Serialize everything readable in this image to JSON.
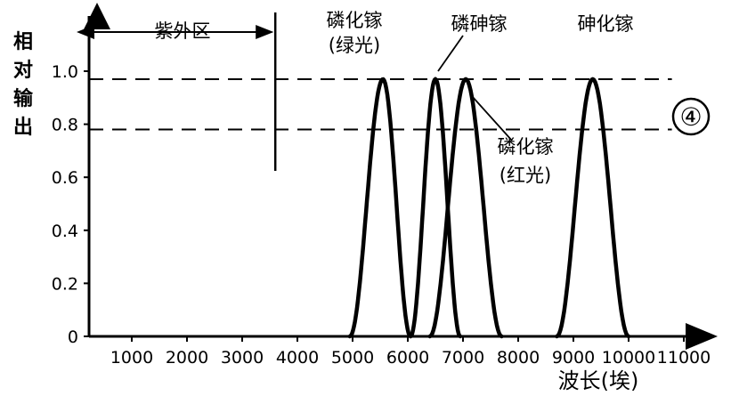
{
  "chart_data": {
    "type": "line",
    "title": "",
    "xlabel": "波长(埃)",
    "ylabel": "相对输出",
    "xlim": [
      0,
      11000
    ],
    "ylim": [
      0,
      1.0
    ],
    "x_ticks": [
      1000,
      2000,
      3000,
      4000,
      5000,
      6000,
      7000,
      8000,
      9000,
      10000,
      11000
    ],
    "y_ticks": [
      0,
      0.2,
      0.4,
      0.6,
      0.8,
      1.0
    ],
    "y_tick_labels": [
      "0",
      "0.2",
      "0.4",
      "0.6",
      "0.8",
      "1.0"
    ],
    "grid": false,
    "reference_lines": [
      {
        "y": 0.97,
        "style": "dashed",
        "from_x": 0,
        "to_x": 10300
      },
      {
        "y": 0.78,
        "style": "dashed",
        "from_x": 0,
        "to_x": 10300
      }
    ],
    "boundary": {
      "x": 3600,
      "label": "紫外区",
      "span": [
        0,
        3600
      ]
    },
    "series": [
      {
        "name": "磷化镓(绿光)",
        "peak_x": 5550,
        "peak_y": 0.97,
        "half_width": 500,
        "x": [
          4950,
          5150,
          5350,
          5550,
          5750,
          5950,
          6050
        ],
        "y": [
          0,
          0.42,
          0.85,
          0.97,
          0.85,
          0.3,
          0
        ]
      },
      {
        "name": "磷砷镓",
        "peak_x": 6500,
        "peak_y": 0.97,
        "half_width": 450,
        "x": [
          6050,
          6250,
          6400,
          6500,
          6650,
          6850,
          6950
        ],
        "y": [
          0,
          0.5,
          0.88,
          0.97,
          0.85,
          0.25,
          0
        ]
      },
      {
        "name": "磷化镓(红光)",
        "peak_x": 7050,
        "peak_y": 0.97,
        "half_width": 650,
        "x": [
          6400,
          6650,
          6850,
          7050,
          7250,
          7500,
          7700
        ],
        "y": [
          0,
          0.45,
          0.85,
          0.97,
          0.85,
          0.3,
          0
        ]
      },
      {
        "name": "砷化镓",
        "peak_x": 9350,
        "peak_y": 0.97,
        "half_width": 650,
        "x": [
          8700,
          8950,
          9150,
          9350,
          9550,
          9800,
          10000
        ],
        "y": [
          0,
          0.45,
          0.85,
          0.97,
          0.85,
          0.3,
          0
        ]
      }
    ],
    "annotations": [
      "紫外区",
      "磷化镓",
      "(绿光)",
      "磷砷镓",
      "砷化镓",
      "磷化镓",
      "(红光)"
    ]
  },
  "badge": "④",
  "texts": {
    "uv_label": "紫外区",
    "gap_green_1": "磷化镓",
    "gap_green_2": "(绿光)",
    "gaasp": "磷砷镓",
    "gaas": "砷化镓",
    "gap_red_1": "磷化镓",
    "gap_red_2": "(红光)"
  }
}
